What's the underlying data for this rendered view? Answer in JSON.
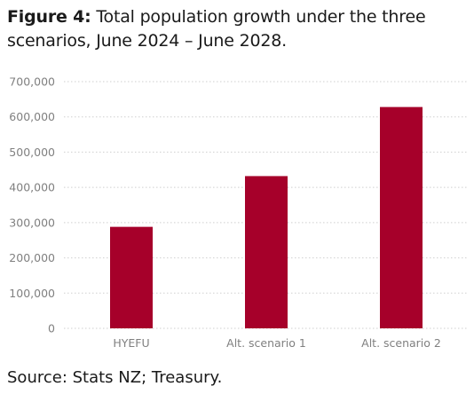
{
  "figure": {
    "label": "Figure 4:",
    "title": "Total population growth under the three scenarios, June 2024 – June 2028."
  },
  "source": "Source: Stats NZ; Treasury.",
  "colors": {
    "bar": "#a6002a",
    "grid": "#cfcfcf",
    "tick_text": "#808080"
  },
  "chart_data": {
    "type": "bar",
    "categories": [
      "HYEFU",
      "Alt. scenario 1",
      "Alt. scenario 2"
    ],
    "values": [
      288000,
      432000,
      628000
    ],
    "ylim": [
      0,
      700000
    ],
    "yticks": [
      0,
      100000,
      200000,
      300000,
      400000,
      500000,
      600000,
      700000
    ],
    "ytick_labels": [
      "0",
      "100,000",
      "200,000",
      "300,000",
      "400,000",
      "500,000",
      "600,000",
      "700,000"
    ],
    "grid": "horizontal dotted",
    "xlabel": "",
    "ylabel": ""
  }
}
